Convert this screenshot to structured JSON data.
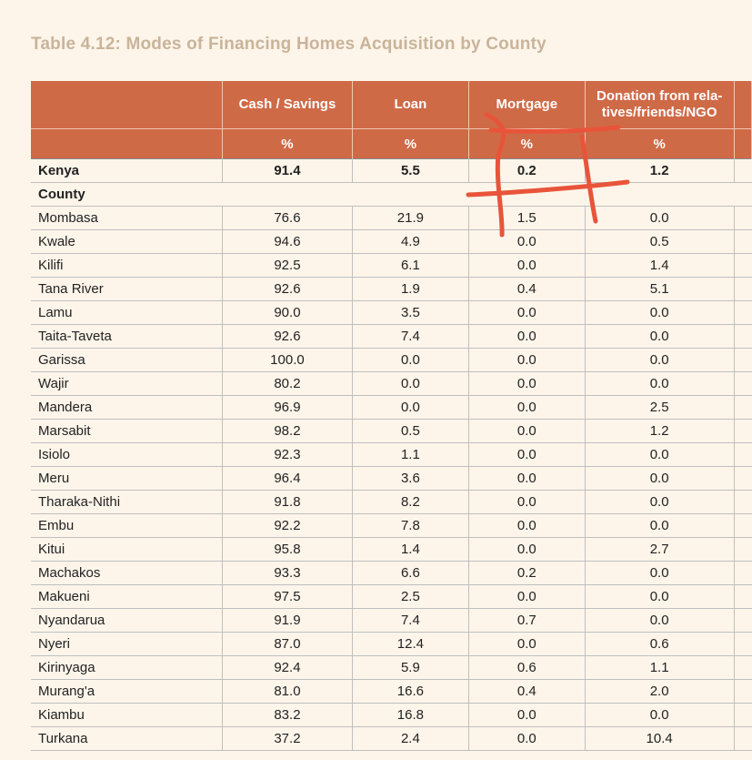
{
  "title": "Table 4.12: Modes of Financing Homes Acquisition by County",
  "header": {
    "columns": [
      "",
      "Cash / Savings",
      "Loan",
      "Mortgage",
      "Donation from rela-\ntives/friends/NGO"
    ],
    "units": [
      "",
      "%",
      "%",
      "%",
      "%"
    ]
  },
  "kenya": {
    "label": "Kenya",
    "values": [
      "91.4",
      "5.5",
      "0.2",
      "1.2"
    ]
  },
  "county_label": "County",
  "rows": [
    {
      "name": "Mombasa",
      "values": [
        "76.6",
        "21.9",
        "1.5",
        "0.0"
      ]
    },
    {
      "name": "Kwale",
      "values": [
        "94.6",
        "4.9",
        "0.0",
        "0.5"
      ]
    },
    {
      "name": "Kilifi",
      "values": [
        "92.5",
        "6.1",
        "0.0",
        "1.4"
      ]
    },
    {
      "name": "Tana River",
      "values": [
        "92.6",
        "1.9",
        "0.4",
        "5.1"
      ]
    },
    {
      "name": "Lamu",
      "values": [
        "90.0",
        "3.5",
        "0.0",
        "0.0"
      ]
    },
    {
      "name": "Taita-Taveta",
      "values": [
        "92.6",
        "7.4",
        "0.0",
        "0.0"
      ]
    },
    {
      "name": "Garissa",
      "values": [
        "100.0",
        "0.0",
        "0.0",
        "0.0"
      ]
    },
    {
      "name": "Wajir",
      "values": [
        "80.2",
        "0.0",
        "0.0",
        "0.0"
      ]
    },
    {
      "name": "Mandera",
      "values": [
        "96.9",
        "0.0",
        "0.0",
        "2.5"
      ]
    },
    {
      "name": "Marsabit",
      "values": [
        "98.2",
        "0.5",
        "0.0",
        "1.2"
      ]
    },
    {
      "name": "Isiolo",
      "values": [
        "92.3",
        "1.1",
        "0.0",
        "0.0"
      ]
    },
    {
      "name": "Meru",
      "values": [
        "96.4",
        "3.6",
        "0.0",
        "0.0"
      ]
    },
    {
      "name": "Tharaka-Nithi",
      "values": [
        "91.8",
        "8.2",
        "0.0",
        "0.0"
      ]
    },
    {
      "name": "Embu",
      "values": [
        "92.2",
        "7.8",
        "0.0",
        "0.0"
      ]
    },
    {
      "name": "Kitui",
      "values": [
        "95.8",
        "1.4",
        "0.0",
        "2.7"
      ]
    },
    {
      "name": "Machakos",
      "values": [
        "93.3",
        "6.6",
        "0.2",
        "0.0"
      ]
    },
    {
      "name": "Makueni",
      "values": [
        "97.5",
        "2.5",
        "0.0",
        "0.0"
      ]
    },
    {
      "name": "Nyandarua",
      "values": [
        "91.9",
        "7.4",
        "0.7",
        "0.0"
      ]
    },
    {
      "name": "Nyeri",
      "values": [
        "87.0",
        "12.4",
        "0.0",
        "0.6"
      ]
    },
    {
      "name": "Kirinyaga",
      "values": [
        "92.4",
        "5.9",
        "0.6",
        "1.1"
      ]
    },
    {
      "name": "Murang'a",
      "values": [
        "81.0",
        "16.6",
        "0.4",
        "2.0"
      ]
    },
    {
      "name": "Kiambu",
      "values": [
        "83.2",
        "16.8",
        "0.0",
        "0.0"
      ]
    },
    {
      "name": "Turkana",
      "values": [
        "37.2",
        "2.4",
        "0.0",
        "10.4"
      ]
    }
  ],
  "colors": {
    "header_bg": "#cf6a47",
    "annotation": "#e8543a",
    "title": "#c9b49a",
    "page_bg": "#fdf5ea"
  }
}
